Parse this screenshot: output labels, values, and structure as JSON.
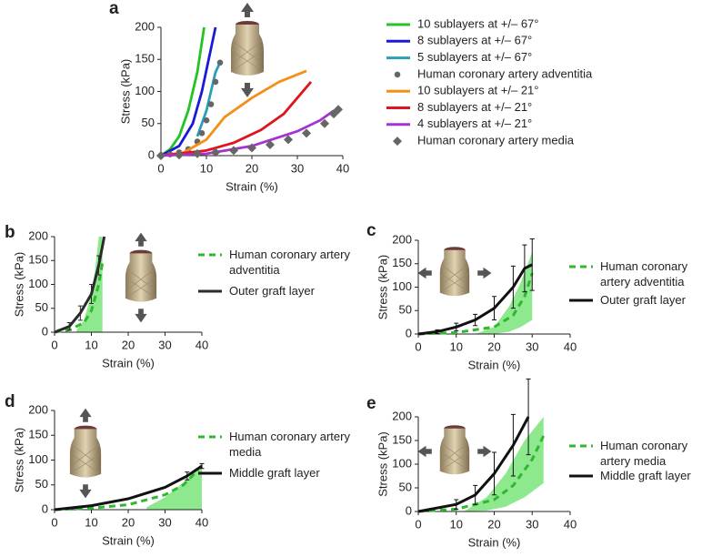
{
  "chart_data": [
    {
      "type": "line",
      "label": "a",
      "xlabel": "Strain (%)",
      "ylabel": "Stress (kPa)",
      "xlim": [
        0,
        40
      ],
      "ylim": [
        0,
        200
      ],
      "xticks": [
        0,
        10,
        20,
        30,
        40
      ],
      "yticks": [
        0,
        50,
        100,
        150,
        200
      ],
      "series": [
        {
          "name": "10 sublayers at +/– 67°",
          "color": "#22c322",
          "style": "solid",
          "x": [
            0,
            2,
            4,
            6,
            8,
            9.5
          ],
          "values": [
            0,
            10,
            30,
            70,
            130,
            200
          ]
        },
        {
          "name": "8 sublayers at +/– 67°",
          "color": "#1a1ad6",
          "style": "solid",
          "x": [
            0,
            4,
            7,
            9,
            10.5,
            12
          ],
          "values": [
            0,
            15,
            50,
            100,
            150,
            200
          ]
        },
        {
          "name": "5 sublayers at +/– 67°",
          "color": "#2a9fb8",
          "style": "solid",
          "x": [
            8,
            10,
            11,
            12,
            13
          ],
          "values": [
            30,
            70,
            100,
            130,
            145
          ]
        },
        {
          "name": "Human coronary artery adventitia",
          "color": "#666666",
          "style": "points",
          "x": [
            0,
            2,
            4,
            6,
            8,
            9,
            10,
            11,
            12,
            13
          ],
          "values": [
            0,
            2,
            5,
            10,
            22,
            35,
            55,
            80,
            115,
            145
          ]
        },
        {
          "name": "10 sublayers at +/– 21°",
          "color": "#f39019",
          "style": "solid",
          "x": [
            0,
            5,
            10,
            14,
            20,
            26,
            32
          ],
          "values": [
            0,
            5,
            25,
            60,
            90,
            115,
            132
          ]
        },
        {
          "name": "8 sublayers at +/– 21°",
          "color": "#e0141e",
          "style": "solid",
          "x": [
            0,
            10,
            16,
            22,
            27,
            30,
            33
          ],
          "values": [
            0,
            8,
            20,
            40,
            65,
            90,
            115
          ]
        },
        {
          "name": "4 sublayers at +/– 21°",
          "color": "#a532d2",
          "style": "solid",
          "x": [
            0,
            10,
            20,
            30,
            35,
            38
          ],
          "values": [
            0,
            3,
            15,
            38,
            55,
            70
          ]
        },
        {
          "name": "Human coronary artery media",
          "color": "#666666",
          "style": "diamonds",
          "x": [
            0,
            4,
            8,
            12,
            16,
            20,
            24,
            28,
            32,
            36,
            38,
            39
          ],
          "values": [
            0,
            1,
            3,
            5,
            8,
            12,
            17,
            25,
            35,
            50,
            65,
            72
          ]
        }
      ]
    },
    {
      "type": "line",
      "label": "b",
      "xlabel": "Strain (%)",
      "ylabel": "Stress (kPa)",
      "xlim": [
        0,
        40
      ],
      "ylim": [
        0,
        200
      ],
      "xticks": [
        0,
        10,
        20,
        30,
        40
      ],
      "yticks": [
        0,
        50,
        100,
        150,
        200
      ],
      "band": {
        "color": "#8ee88e",
        "x": [
          6,
          8,
          10,
          11,
          12,
          13
        ],
        "low": [
          0,
          0,
          0,
          0,
          0,
          0
        ],
        "high": [
          5,
          25,
          80,
          130,
          200,
          200
        ]
      },
      "series": [
        {
          "name": "Human coronary artery adventitia",
          "color": "#2eb82e",
          "style": "dashed",
          "x": [
            0,
            4,
            8,
            10,
            12,
            13
          ],
          "values": [
            0,
            5,
            20,
            45,
            100,
            145
          ]
        },
        {
          "name": "Outer graft layer",
          "color": "#2b2b2b",
          "style": "solid",
          "x": [
            0,
            4,
            7,
            10,
            12,
            13.5
          ],
          "values": [
            0,
            12,
            40,
            80,
            140,
            200
          ],
          "errors": [
            0,
            8,
            15,
            20,
            20,
            0
          ]
        }
      ]
    },
    {
      "type": "line",
      "label": "c",
      "xlabel": "Strain (%)",
      "ylabel": "Stress (kPa)",
      "xlim": [
        0,
        40
      ],
      "ylim": [
        0,
        200
      ],
      "xticks": [
        0,
        10,
        20,
        30,
        40
      ],
      "yticks": [
        0,
        50,
        100,
        150,
        200
      ],
      "band": {
        "color": "#8ee88e",
        "x": [
          15,
          20,
          24,
          27,
          30
        ],
        "low": [
          0,
          0,
          5,
          15,
          30
        ],
        "high": [
          0,
          15,
          60,
          110,
          175
        ]
      },
      "series": [
        {
          "name": "Human coronary artery adventitia",
          "color": "#2eb82e",
          "style": "dashed",
          "x": [
            0,
            10,
            20,
            25,
            28,
            30
          ],
          "values": [
            0,
            3,
            15,
            40,
            80,
            130
          ]
        },
        {
          "name": "Outer graft layer",
          "color": "#111111",
          "style": "solid",
          "x": [
            0,
            5,
            10,
            15,
            20,
            25,
            28,
            30
          ],
          "values": [
            0,
            5,
            15,
            30,
            55,
            100,
            140,
            148
          ],
          "errors": [
            0,
            4,
            8,
            12,
            25,
            45,
            50,
            55
          ]
        }
      ]
    },
    {
      "type": "line",
      "label": "d",
      "xlabel": "Strain (%)",
      "ylabel": "Stress (kPa)",
      "xlim": [
        0,
        40
      ],
      "ylim": [
        0,
        200
      ],
      "xticks": [
        0,
        10,
        20,
        30,
        40
      ],
      "yticks": [
        0,
        50,
        100,
        150,
        200
      ],
      "band": {
        "color": "#8ee88e",
        "x": [
          25,
          30,
          35,
          40
        ],
        "low": [
          0,
          0,
          0,
          0
        ],
        "high": [
          5,
          25,
          55,
          90
        ]
      },
      "series": [
        {
          "name": "Human coronary artery media",
          "color": "#2eb82e",
          "style": "dashed",
          "x": [
            0,
            10,
            20,
            30,
            35,
            39
          ],
          "values": [
            0,
            3,
            10,
            30,
            50,
            80
          ]
        },
        {
          "name": "Middle graft layer",
          "color": "#111111",
          "style": "solid",
          "x": [
            0,
            10,
            20,
            30,
            36,
            40
          ],
          "values": [
            0,
            8,
            22,
            45,
            68,
            88
          ],
          "errors": [
            0,
            0,
            0,
            0,
            8,
            5
          ]
        }
      ]
    },
    {
      "type": "line",
      "label": "e",
      "xlabel": "Strain (%)",
      "ylabel": "Stress (kPa)",
      "xlim": [
        0,
        40
      ],
      "ylim": [
        0,
        200
      ],
      "xticks": [
        0,
        10,
        20,
        30,
        40
      ],
      "yticks": [
        0,
        50,
        100,
        150,
        200
      ],
      "band": {
        "color": "#8ee88e",
        "x": [
          12,
          18,
          23,
          28,
          33
        ],
        "low": [
          0,
          2,
          10,
          30,
          60
        ],
        "high": [
          0,
          30,
          80,
          150,
          200
        ]
      },
      "series": [
        {
          "name": "Human coronary artery media",
          "color": "#2eb82e",
          "style": "dashed",
          "x": [
            0,
            10,
            20,
            25,
            30,
            33
          ],
          "values": [
            0,
            5,
            25,
            55,
            110,
            160
          ]
        },
        {
          "name": "Middle graft layer",
          "color": "#111111",
          "style": "solid",
          "x": [
            0,
            10,
            15,
            20,
            25,
            29
          ],
          "values": [
            0,
            15,
            35,
            80,
            140,
            200
          ],
          "errors": [
            0,
            10,
            20,
            45,
            65,
            80
          ]
        }
      ]
    }
  ]
}
